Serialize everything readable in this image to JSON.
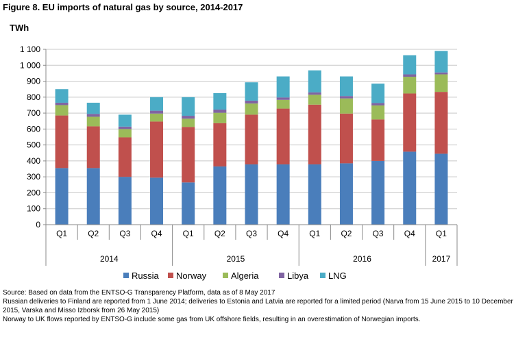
{
  "figure": {
    "title": "Figure 8. EU imports of natural gas by source, 2014-2017"
  },
  "notes": [
    "Source: Based on data from the ENTSO-G Transparency Platform, data as of 8 May 2017",
    "Russian deliveries to Finland are reported from 1 June 2014; deliveries to Estonia and Latvia are reported for a limited period (Narva from 15 June 2015 to 10 December 2015, Varska and Misso Izborsk from 26 May 2015)",
    "Norway to UK flows reported by ENTSO-G include some gas from UK offshore fields, resulting in an overestimation of Norwegian imports."
  ],
  "chart_data": {
    "type": "bar",
    "stacked": true,
    "title": "",
    "xlabel": "",
    "ylabel": "TWh",
    "ylim": [
      0,
      1100
    ],
    "yticks": [
      0,
      100,
      200,
      300,
      400,
      500,
      600,
      700,
      800,
      900,
      1000,
      1100
    ],
    "ytick_labels": [
      "0",
      "100",
      "200",
      "300",
      "400",
      "500",
      "600",
      "700",
      "800",
      "900",
      "1 000",
      "1 100"
    ],
    "grid": true,
    "legend_position": "bottom",
    "categories": [
      "Q1",
      "Q2",
      "Q3",
      "Q4",
      "Q1",
      "Q2",
      "Q3",
      "Q4",
      "Q1",
      "Q2",
      "Q3",
      "Q4",
      "Q1"
    ],
    "year_groups": [
      {
        "label": "2014",
        "count": 4
      },
      {
        "label": "2015",
        "count": 4
      },
      {
        "label": "2016",
        "count": 4
      },
      {
        "label": "2017",
        "count": 1
      }
    ],
    "series": [
      {
        "name": "Russia",
        "color": "#4a7ebb",
        "values": [
          355,
          355,
          300,
          295,
          265,
          365,
          378,
          378,
          378,
          385,
          400,
          458,
          445
        ]
      },
      {
        "name": "Norway",
        "color": "#c0504d",
        "values": [
          330,
          262,
          248,
          352,
          348,
          272,
          312,
          350,
          375,
          312,
          260,
          365,
          388
        ]
      },
      {
        "name": "Algeria",
        "color": "#9bbb59",
        "values": [
          65,
          60,
          52,
          50,
          52,
          65,
          70,
          55,
          62,
          95,
          88,
          105,
          110
        ]
      },
      {
        "name": "Libya",
        "color": "#8064a2",
        "values": [
          15,
          18,
          15,
          18,
          18,
          20,
          18,
          15,
          15,
          15,
          15,
          15,
          12
        ]
      },
      {
        "name": "LNG",
        "color": "#4bacc6",
        "values": [
          85,
          70,
          75,
          85,
          117,
          103,
          115,
          132,
          138,
          123,
          122,
          120,
          135
        ]
      }
    ]
  }
}
